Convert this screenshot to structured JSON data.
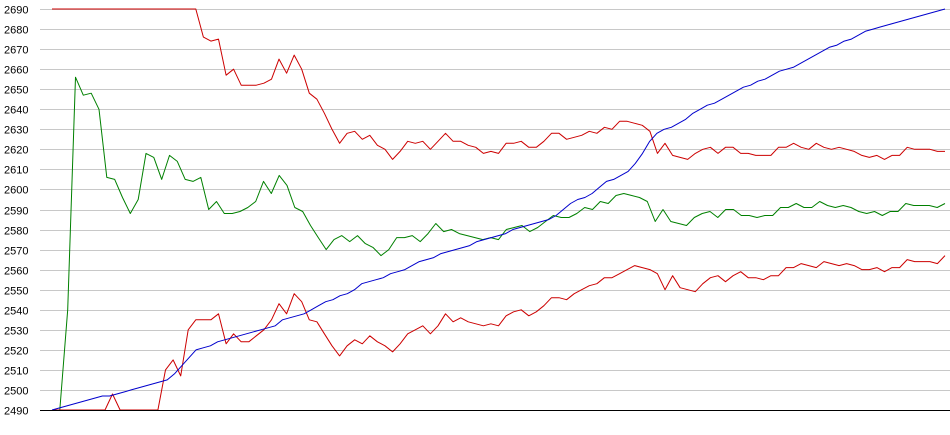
{
  "chart_data": {
    "type": "line",
    "title": "",
    "xlabel": "",
    "ylabel": "",
    "ylim": [
      2490,
      2690
    ],
    "yticks": [
      2490,
      2500,
      2510,
      2520,
      2530,
      2540,
      2550,
      2560,
      2570,
      2580,
      2590,
      2600,
      2610,
      2620,
      2630,
      2640,
      2650,
      2660,
      2670,
      2680,
      2690
    ],
    "ytick_labels": [
      "2490",
      "2500",
      "2510",
      "2520",
      "2530",
      "2540",
      "2550",
      "2560",
      "2570",
      "2580",
      "2590",
      "2600",
      "2610",
      "2620",
      "2630",
      "2640",
      "2650",
      "2660",
      "2670",
      "2680",
      "2690"
    ],
    "grid": true,
    "legend": "none",
    "series": [
      {
        "color": "#cc0000",
        "values": [
          2690,
          2690,
          2690,
          2690,
          2690,
          2690,
          2690,
          2690,
          2690,
          2690,
          2690,
          2690,
          2690,
          2690,
          2690,
          2690,
          2690,
          2690,
          2690,
          2690,
          2676,
          2674,
          2675,
          2657,
          2660,
          2652,
          2652,
          2652,
          2653,
          2655,
          2665,
          2658,
          2667,
          2660,
          2648,
          2645,
          2638,
          2630,
          2623,
          2628,
          2629,
          2625,
          2627,
          2622,
          2620,
          2615,
          2619,
          2624,
          2623,
          2624,
          2620,
          2624,
          2628,
          2624,
          2624,
          2622,
          2621,
          2618,
          2619,
          2618,
          2623,
          2623,
          2624,
          2621,
          2621,
          2624,
          2628,
          2628,
          2625,
          2626,
          2627,
          2629,
          2628,
          2631,
          2630,
          2634,
          2634,
          2633,
          2632,
          2629,
          2618,
          2623,
          2617,
          2616,
          2615,
          2618,
          2620,
          2621,
          2618,
          2621,
          2621,
          2618,
          2618,
          2617,
          2617,
          2617,
          2621,
          2621,
          2623,
          2621,
          2620,
          2623,
          2621,
          2620,
          2621,
          2620,
          2619,
          2617,
          2616,
          2617,
          2615,
          2617,
          2617,
          2621,
          2620,
          2620,
          2620,
          2619,
          2619
        ]
      },
      {
        "color": "#008000",
        "values": [
          2490,
          2490,
          2540,
          2656,
          2647,
          2648,
          2640,
          2606,
          2605,
          2596,
          2588,
          2595,
          2618,
          2616,
          2605,
          2617,
          2614,
          2605,
          2604,
          2606,
          2590,
          2594,
          2588,
          2588,
          2589,
          2591,
          2594,
          2604,
          2598,
          2607,
          2602,
          2591,
          2589,
          2582,
          2576,
          2570,
          2575,
          2577,
          2574,
          2577,
          2573,
          2571,
          2567,
          2570,
          2576,
          2576,
          2577,
          2574,
          2578,
          2583,
          2579,
          2580,
          2578,
          2577,
          2576,
          2575,
          2576,
          2575,
          2580,
          2581,
          2582,
          2579,
          2581,
          2584,
          2587,
          2586,
          2586,
          2588,
          2591,
          2590,
          2594,
          2593,
          2597,
          2598,
          2597,
          2596,
          2594,
          2584,
          2590,
          2584,
          2583,
          2582,
          2586,
          2588,
          2589,
          2586,
          2590,
          2590,
          2587,
          2587,
          2586,
          2587,
          2587,
          2591,
          2591,
          2593,
          2591,
          2591,
          2594,
          2592,
          2591,
          2592,
          2591,
          2589,
          2588,
          2589,
          2587,
          2589,
          2589,
          2593,
          2592,
          2592,
          2592,
          2591,
          2593
        ]
      },
      {
        "color": "#cc0000",
        "values": [
          2490,
          2490,
          2490,
          2490,
          2490,
          2490,
          2490,
          2490,
          2498,
          2490,
          2490,
          2490,
          2490,
          2490,
          2490,
          2510,
          2515,
          2507,
          2530,
          2535,
          2535,
          2535,
          2538,
          2523,
          2528,
          2524,
          2524,
          2527,
          2530,
          2535,
          2543,
          2538,
          2548,
          2544,
          2535,
          2534,
          2528,
          2522,
          2517,
          2522,
          2525,
          2523,
          2527,
          2524,
          2522,
          2519,
          2523,
          2528,
          2530,
          2532,
          2528,
          2532,
          2538,
          2534,
          2536,
          2534,
          2533,
          2532,
          2533,
          2532,
          2537,
          2539,
          2540,
          2537,
          2539,
          2542,
          2546,
          2546,
          2545,
          2548,
          2550,
          2552,
          2553,
          2556,
          2556,
          2558,
          2560,
          2562,
          2561,
          2560,
          2558,
          2550,
          2557,
          2551,
          2550,
          2549,
          2553,
          2556,
          2557,
          2554,
          2557,
          2559,
          2556,
          2556,
          2555,
          2557,
          2557,
          2561,
          2561,
          2563,
          2562,
          2561,
          2564,
          2563,
          2562,
          2563,
          2562,
          2560,
          2560,
          2561,
          2559,
          2561,
          2561,
          2565,
          2564,
          2564,
          2564,
          2563,
          2567
        ]
      },
      {
        "color": "#0000cc",
        "values": [
          2490,
          2491,
          2492,
          2493,
          2494,
          2495,
          2496,
          2497,
          2497,
          2498,
          2499,
          2500,
          2501,
          2502,
          2503,
          2504,
          2505,
          2508,
          2512,
          2516,
          2520,
          2521,
          2522,
          2524,
          2525,
          2526,
          2527,
          2528,
          2529,
          2530,
          2531,
          2532,
          2535,
          2536,
          2537,
          2538,
          2540,
          2542,
          2544,
          2545,
          2547,
          2548,
          2550,
          2553,
          2554,
          2555,
          2556,
          2558,
          2559,
          2560,
          2562,
          2564,
          2565,
          2566,
          2568,
          2569,
          2570,
          2571,
          2572,
          2574,
          2575,
          2576,
          2577,
          2578,
          2580,
          2581,
          2582,
          2583,
          2584,
          2585,
          2587,
          2590,
          2593,
          2595,
          2596,
          2598,
          2601,
          2604,
          2605,
          2607,
          2609,
          2613,
          2618,
          2624,
          2628,
          2630,
          2631,
          2633,
          2635,
          2638,
          2640,
          2642,
          2643,
          2645,
          2647,
          2649,
          2651,
          2652,
          2654,
          2655,
          2657,
          2659,
          2660,
          2661,
          2663,
          2665,
          2667,
          2669,
          2671,
          2672,
          2674,
          2675,
          2677,
          2679,
          2680,
          2681,
          2682,
          2683,
          2684,
          2685,
          2686,
          2687,
          2688,
          2689,
          2690
        ]
      }
    ]
  }
}
